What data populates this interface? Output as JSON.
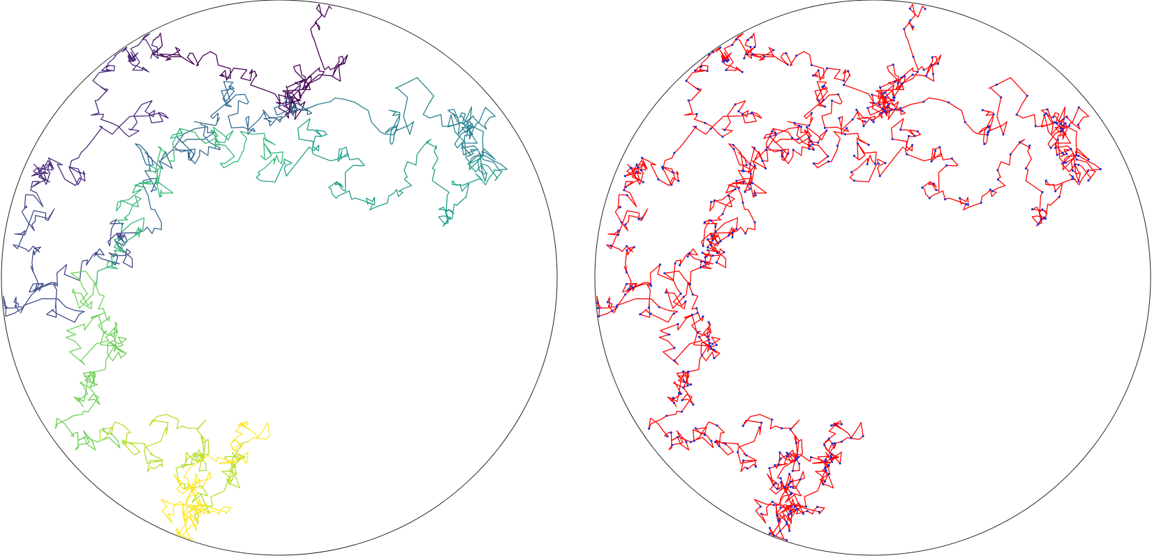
{
  "figure": {
    "panels": [
      {
        "id": "left",
        "name": "walk-colored-by-time",
        "boundary_color": "#222222",
        "walk_style": "viridis-gradient",
        "palette": [
          "#440154",
          "#482878",
          "#3e4989",
          "#31688e",
          "#26828e",
          "#1f9e89",
          "#35b779",
          "#6ece58",
          "#b5de2b",
          "#fde725"
        ]
      },
      {
        "id": "right",
        "name": "walk-with-step-markers",
        "boundary_color": "#222222",
        "walk_style": "solid-with-markers",
        "line_color": "#ff0000",
        "marker_color": "#1f2fd6"
      }
    ],
    "walk": {
      "type": "brownian-like random walk confined to a disk",
      "start_region": "top",
      "end_region": "bottom"
    }
  }
}
